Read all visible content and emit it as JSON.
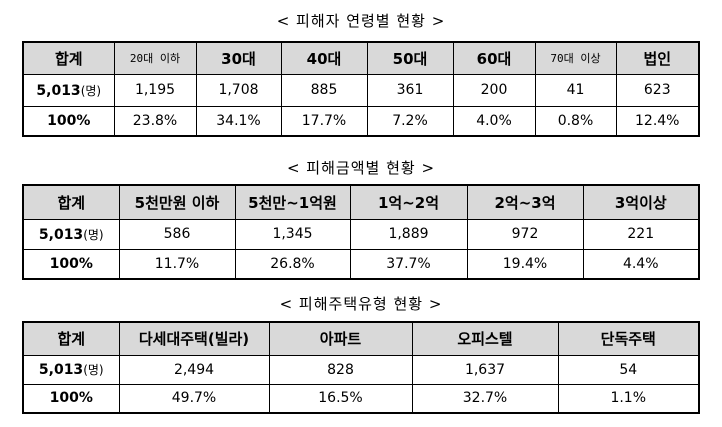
{
  "age": {
    "title": "< 피해자 연령별 현황 >",
    "headers": [
      "합계",
      "20대 이하",
      "30대",
      "40대",
      "50대",
      "60대",
      "70대 이상",
      "법인"
    ],
    "count_label": "5,013",
    "count_unit": "(명)",
    "counts": [
      "1,195",
      "1,708",
      "885",
      "361",
      "200",
      "41",
      "623"
    ],
    "pct_label": "100%",
    "pcts": [
      "23.8%",
      "34.1%",
      "17.7%",
      "7.2%",
      "4.0%",
      "0.8%",
      "12.4%"
    ]
  },
  "amount": {
    "title": "< 피해금액별 현황 >",
    "headers": [
      "합계",
      "5천만원 이하",
      "5천만~1억원",
      "1억~2억",
      "2억~3억",
      "3억이상"
    ],
    "count_label": "5,013",
    "count_unit": "(명)",
    "counts": [
      "586",
      "1,345",
      "1,889",
      "972",
      "221"
    ],
    "pct_label": "100%",
    "pcts": [
      "11.7%",
      "26.8%",
      "37.7%",
      "19.4%",
      "4.4%"
    ]
  },
  "housing": {
    "title": "< 피해주택유형 현황 >",
    "headers": [
      "합계",
      "다세대주택(빌라)",
      "아파트",
      "오피스텔",
      "단독주택"
    ],
    "count_label": "5,013",
    "count_unit": "(명)",
    "counts": [
      "2,494",
      "828",
      "1,637",
      "54"
    ],
    "pct_label": "100%",
    "pcts": [
      "49.7%",
      "16.5%",
      "32.7%",
      "1.1%"
    ]
  }
}
